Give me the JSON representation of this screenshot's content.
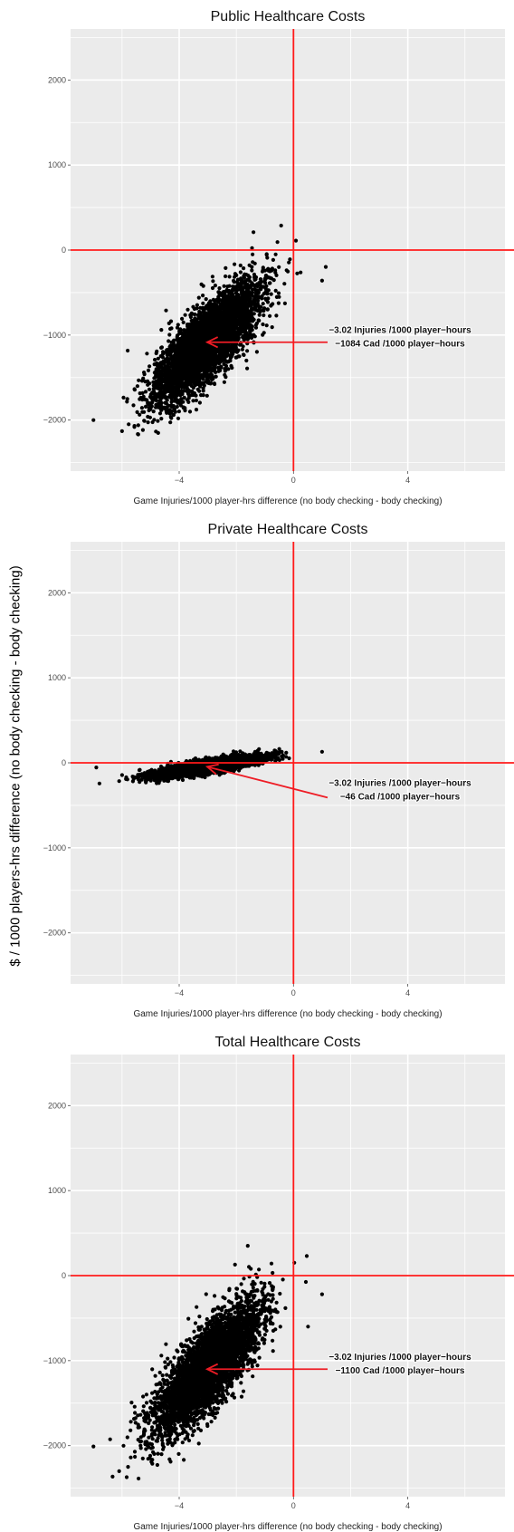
{
  "figure": {
    "ylabel": "$ / 1000 players-hrs difference (no body checking - body checking)"
  },
  "colors": {
    "panel_bg": "#ebebeb",
    "grid": "#ffffff",
    "points": "#000000",
    "reference": "#ff1a1a",
    "arrow": "#ee1c25"
  },
  "chart_data": [
    {
      "type": "scatter",
      "title": "Public Healthcare Costs",
      "xlabel": "Game Injuries/1000 player-hrs difference  (no body checking - body checking)",
      "ylabel": "$ / 1000 players-hrs difference (no body checking - body checking)",
      "xlim": [
        -7.8,
        7.4
      ],
      "ylim": [
        -2600,
        2600
      ],
      "xticks": [
        -4,
        0,
        4
      ],
      "yticks": [
        -2000,
        -1000,
        0,
        1000,
        2000
      ],
      "reference_lines": {
        "x": 0,
        "y": 0
      },
      "cloud": {
        "n": 4200,
        "mean_x": -3.02,
        "mean_y": -1084,
        "sd_x": 0.9,
        "sd_y": 340,
        "corr": 0.78,
        "seed": 11
      },
      "outliers": [
        [
          -7.0,
          -2000
        ],
        [
          1.0,
          -360
        ],
        [
          -1.4,
          210
        ],
        [
          -6.0,
          -2130
        ]
      ],
      "annotation": {
        "lines": [
          "−3.02 Injuries /1000 player−hours",
          "−1084 Cad /1000 player−hours"
        ],
        "point": [
          -3.02,
          -1084
        ]
      },
      "grid": true
    },
    {
      "type": "scatter",
      "title": "Private Healthcare Costs",
      "xlabel": "Game Injuries/1000 player-hrs difference  (no body checking - body checking)",
      "ylabel": "$ / 1000 players-hrs difference (no body checking - body checking)",
      "xlim": [
        -7.8,
        7.4
      ],
      "ylim": [
        -2600,
        2600
      ],
      "xticks": [
        -4,
        0,
        4
      ],
      "yticks": [
        -2000,
        -1000,
        0,
        1000,
        2000
      ],
      "reference_lines": {
        "x": 0,
        "y": 0
      },
      "cloud": {
        "n": 3200,
        "mean_x": -3.02,
        "mean_y": -46,
        "sd_x": 0.95,
        "sd_y": 62,
        "corr": 0.8,
        "seed": 23
      },
      "outliers": [
        [
          -6.9,
          -55
        ],
        [
          1.0,
          130
        ],
        [
          -6.1,
          -215
        ]
      ],
      "annotation": {
        "lines": [
          "−3.02 Injuries /1000 player−hours",
          "−46 Cad /1000 player−hours"
        ],
        "point": [
          -3.02,
          -46
        ]
      },
      "grid": true
    },
    {
      "type": "scatter",
      "title": "Total Healthcare Costs",
      "xlabel": "Game Injuries/1000 player-hrs difference  (no body checking - body checking)",
      "ylabel": "$ / 1000 players-hrs difference (no body checking - body checking)",
      "xlim": [
        -7.8,
        7.4
      ],
      "ylim": [
        -2600,
        2600
      ],
      "xticks": [
        -4,
        0,
        4
      ],
      "yticks": [
        -2000,
        -1000,
        0,
        1000,
        2000
      ],
      "reference_lines": {
        "x": 0,
        "y": 0
      },
      "cloud": {
        "n": 4200,
        "mean_x": -3.02,
        "mean_y": -1100,
        "sd_x": 0.9,
        "sd_y": 370,
        "corr": 0.78,
        "seed": 37
      },
      "outliers": [
        [
          -7.0,
          -2010
        ],
        [
          1.0,
          -220
        ],
        [
          -1.6,
          350
        ],
        [
          -6.1,
          -2300
        ]
      ],
      "annotation": {
        "lines": [
          "−3.02 Injuries /1000 player−hours",
          "−1100 Cad /1000 player−hours"
        ],
        "point": [
          -3.02,
          -1100
        ]
      },
      "grid": true
    }
  ]
}
